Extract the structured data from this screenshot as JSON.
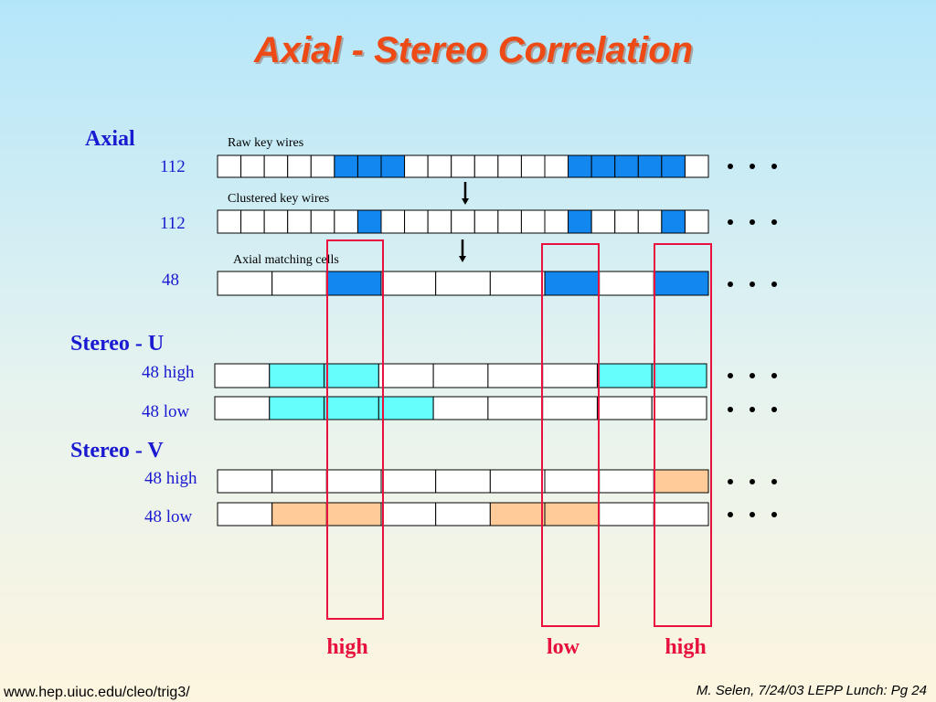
{
  "header": {
    "title": "Axial - Stereo Correlation"
  },
  "axial": {
    "heading": "Axial",
    "rows": [
      {
        "caption": "Raw key wires",
        "label": "112"
      },
      {
        "caption": "Clustered key wires",
        "label": "112"
      },
      {
        "caption": "Axial matching cells",
        "label": "48"
      }
    ]
  },
  "stereo_u": {
    "heading": "Stereo - U",
    "rows": [
      {
        "label": "48 high"
      },
      {
        "label": "48 low"
      }
    ]
  },
  "stereo_v": {
    "heading": "Stereo - V",
    "rows": [
      {
        "label": "48 high"
      },
      {
        "label": "48 low"
      }
    ]
  },
  "columns": [
    "high",
    "low",
    "high"
  ],
  "footer": {
    "left": "www.hep.uiuc.edu/cleo/trig3/",
    "right": "M. Selen, 7/24/03 LEPP Lunch: Pg 24"
  }
}
